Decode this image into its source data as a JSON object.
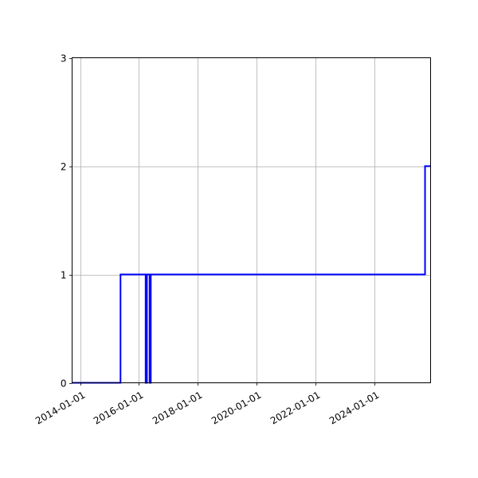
{
  "chart_data": {
    "type": "line",
    "drawstyle": "steps-post",
    "title": "",
    "xlabel": "",
    "ylabel": "",
    "x_axis_type": "date",
    "xlim": [
      "2013-09-24",
      "2025-12-01"
    ],
    "ylim": [
      0,
      3
    ],
    "grid": true,
    "x_ticks": [
      "2014-01-01",
      "2016-01-01",
      "2018-01-01",
      "2020-01-01",
      "2022-01-01",
      "2024-01-01"
    ],
    "y_ticks": [
      0,
      1,
      2,
      3
    ],
    "series": [
      {
        "color": "#0000ff",
        "points": [
          {
            "x": "2013-09-24",
            "y": 0
          },
          {
            "x": "2015-05-18",
            "y": 1
          },
          {
            "x": "2016-03-25",
            "y": 0
          },
          {
            "x": "2016-04-10",
            "y": 1
          },
          {
            "x": "2016-05-13",
            "y": 0
          },
          {
            "x": "2016-05-28",
            "y": 1
          },
          {
            "x": "2025-09-23",
            "y": 2
          },
          {
            "x": "2025-12-01",
            "y": 2
          }
        ]
      }
    ]
  }
}
